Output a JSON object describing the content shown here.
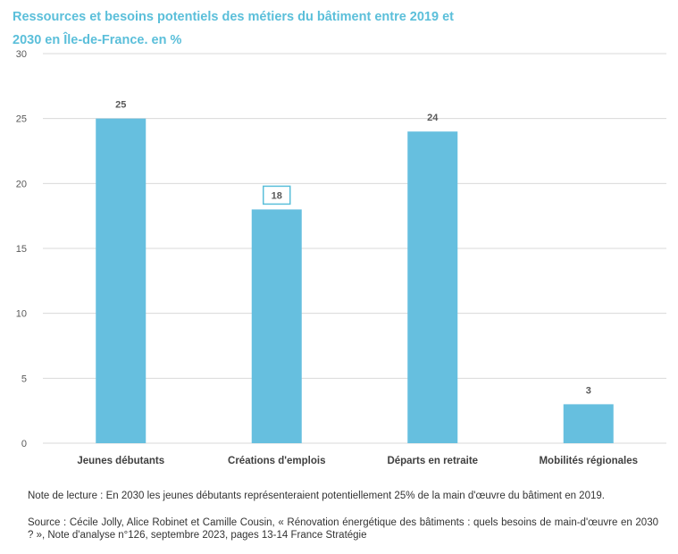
{
  "chart_data": {
    "type": "bar",
    "title": "Ressources et besoins potentiels des métiers du bâtiment entre 2019 et 2030 en Île-de-France. en %",
    "categories": [
      "Jeunes débutants",
      "Créations d'emplois",
      "Départs en retraite",
      "Mobilités régionales"
    ],
    "values": [
      25,
      18,
      24,
      3
    ],
    "ylim": [
      0,
      30
    ],
    "yticks": [
      0,
      5,
      10,
      15,
      20,
      25,
      30
    ],
    "xlabel": "",
    "ylabel": "",
    "grid": true,
    "highlighted_label_index": 1
  },
  "colors": {
    "bar": "#66bfdf",
    "title": "#5bbfda",
    "grid": "#d9d9d9",
    "highlight_box": "#5bbfda"
  },
  "notes": {
    "reading_note": "Note de lecture : En 2030 les jeunes débutants représenteraient potentiellement 25% de la main d'œuvre du bâtiment en 2019.",
    "source": "Source : Cécile Jolly, Alice Robinet et Camille Cousin, « Rénovation énergétique des bâtiments : quels besoins de main-d'œuvre en 2030 ? », Note d'analyse n°126, septembre 2023, pages 13-14 France Stratégie"
  }
}
